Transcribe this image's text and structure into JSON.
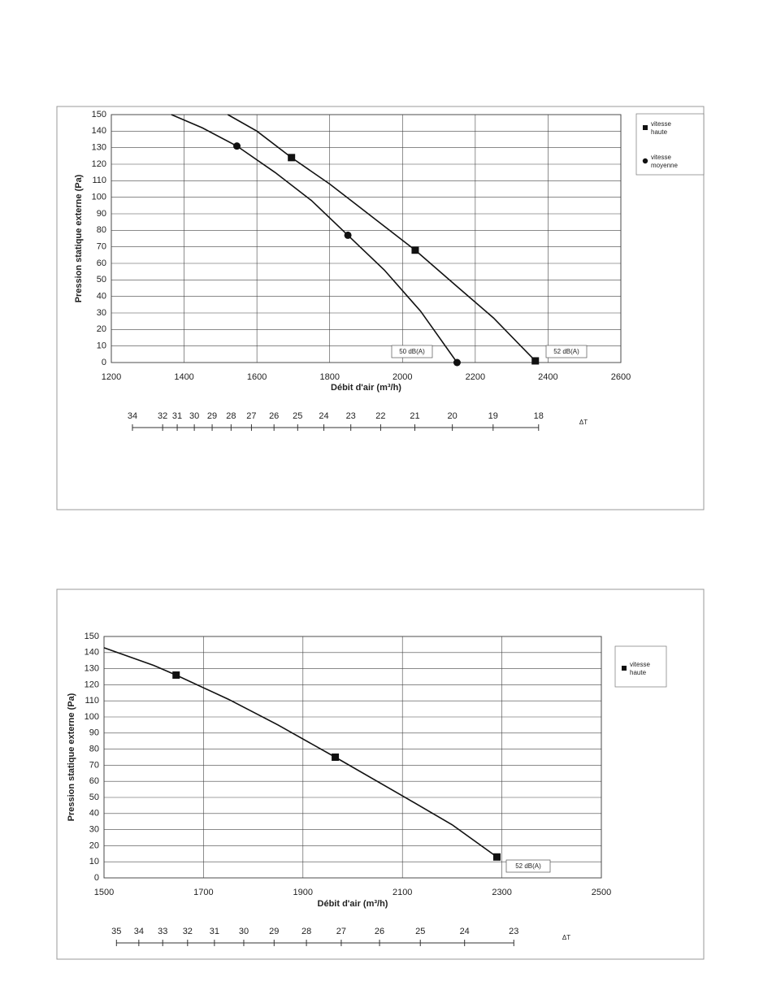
{
  "chart_data": [
    {
      "type": "line",
      "ylabel": "Pression statique externe (Pa)",
      "xlabel": "Débit d'air (m³/h)",
      "xlim": [
        1200,
        2600
      ],
      "xticks": [
        1200,
        1400,
        1600,
        1800,
        2000,
        2200,
        2400,
        2600
      ],
      "ylim": [
        0,
        150
      ],
      "yticks": [
        0,
        10,
        20,
        30,
        40,
        50,
        60,
        70,
        80,
        90,
        100,
        110,
        120,
        130,
        140,
        150
      ],
      "grid": true,
      "series": [
        {
          "name": "vitesse haute",
          "marker": "square",
          "color": "#111111",
          "x": [
            1695,
            2035,
            2365
          ],
          "values": [
            124,
            68,
            1
          ],
          "curve_x": [
            1520,
            1600,
            1695,
            1800,
            1900,
            2035,
            2150,
            2250,
            2365
          ],
          "curve_values": [
            150,
            140,
            124,
            108,
            91,
            68,
            46,
            27,
            1
          ]
        },
        {
          "name": "vitesse moyenne",
          "marker": "circle",
          "color": "#111111",
          "x": [
            1545,
            1850,
            2150
          ],
          "values": [
            131,
            77,
            0
          ],
          "curve_x": [
            1365,
            1450,
            1545,
            1650,
            1750,
            1850,
            1950,
            2050,
            2150
          ],
          "curve_values": [
            150,
            142,
            131,
            115,
            98,
            77,
            56,
            31,
            0
          ]
        }
      ],
      "annotations": [
        "50 dB(A)",
        "52 dB(A)"
      ],
      "dt_scale": {
        "label": "ΔT",
        "x": [
          1258,
          1341,
          1381,
          1428,
          1477,
          1529,
          1585,
          1647,
          1712,
          1784,
          1858,
          1940,
          2034,
          2137,
          2249,
          2374
        ],
        "values": [
          34,
          32,
          31,
          30,
          29,
          28,
          27,
          26,
          25,
          24,
          23,
          22,
          21,
          20,
          19,
          18
        ]
      }
    },
    {
      "type": "line",
      "ylabel": "Pression statique externe (Pa)",
      "xlabel": "Débit d'air (m³/h)",
      "xlim": [
        1500,
        2500
      ],
      "xticks": [
        1500,
        1700,
        1900,
        2100,
        2300,
        2500
      ],
      "ylim": [
        0,
        150
      ],
      "yticks": [
        0,
        10,
        20,
        30,
        40,
        50,
        60,
        70,
        80,
        90,
        100,
        110,
        120,
        130,
        140,
        150
      ],
      "grid": true,
      "series": [
        {
          "name": "vitesse haute",
          "marker": "square",
          "color": "#111111",
          "x": [
            1645,
            1965,
            2290
          ],
          "values": [
            126,
            75,
            13
          ],
          "curve_x": [
            1500,
            1600,
            1645,
            1750,
            1850,
            1965,
            2100,
            2200,
            2290
          ],
          "curve_values": [
            143,
            132,
            126,
            111,
            95,
            75,
            51,
            33,
            13
          ]
        }
      ],
      "annotations": [
        "52 dB(A)"
      ],
      "dt_scale": {
        "label": "ΔT",
        "x": [
          1525,
          1570,
          1618,
          1668,
          1722,
          1781,
          1842,
          1907,
          1977,
          2054,
          2136,
          2225,
          2324
        ],
        "values": [
          35,
          34,
          33,
          32,
          31,
          30,
          29,
          28,
          27,
          26,
          25,
          24,
          23
        ]
      }
    }
  ]
}
